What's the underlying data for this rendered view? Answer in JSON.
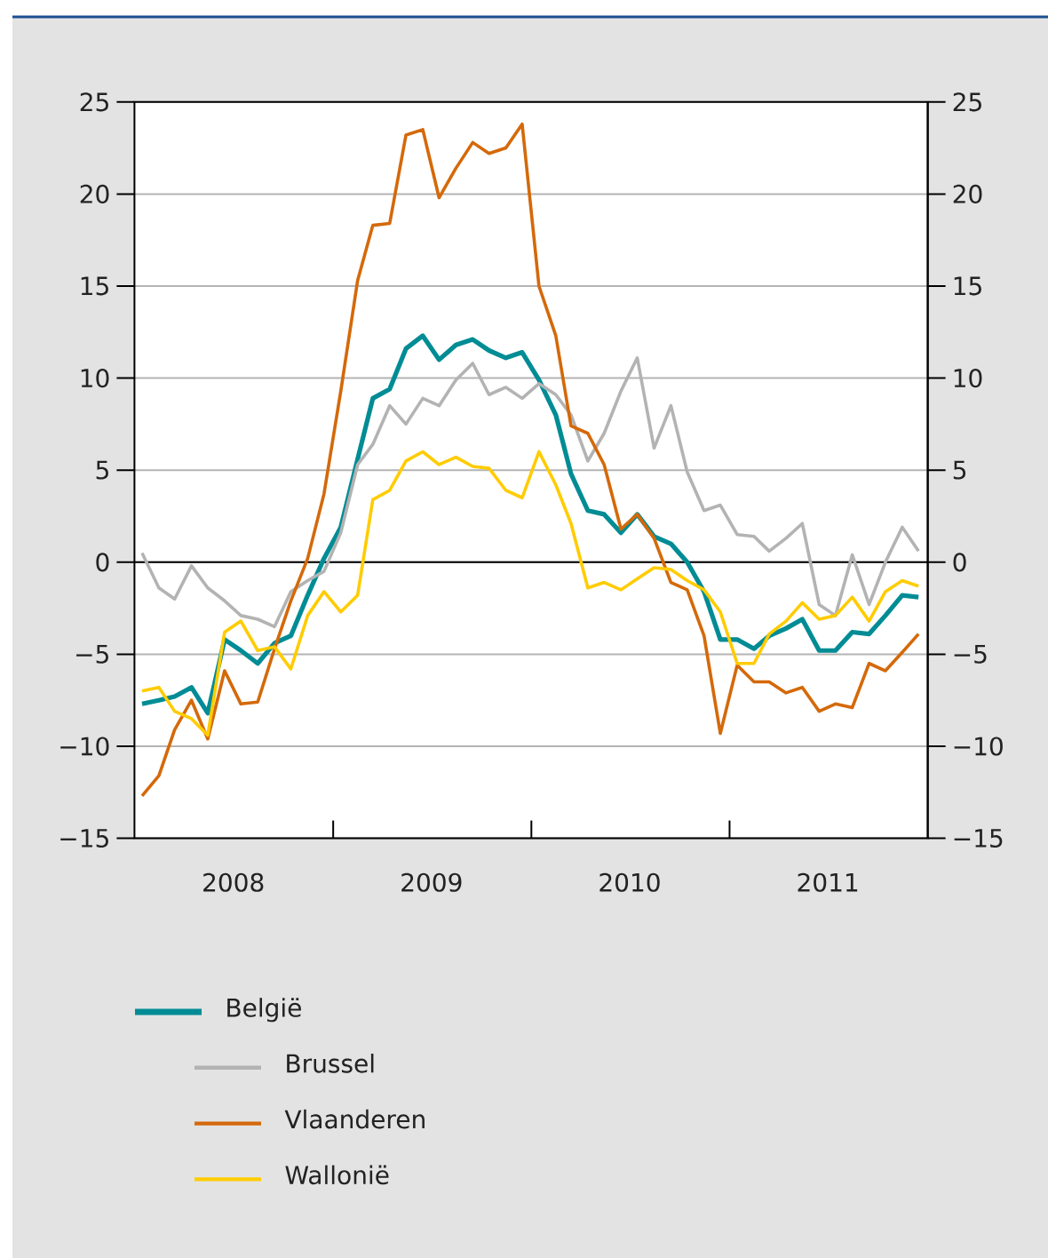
{
  "chart_data": {
    "type": "line",
    "x": [
      "2008-01-15",
      "2008-02-15",
      "2008-03-15",
      "2008-04-15",
      "2008-05-15",
      "2008-06-15",
      "2008-07-15",
      "2008-08-15",
      "2008-09-15",
      "2008-10-15",
      "2008-11-15",
      "2008-12-15",
      "2009-01-15",
      "2009-02-15",
      "2009-03-15",
      "2009-04-15",
      "2009-05-15",
      "2009-06-15",
      "2009-07-15",
      "2009-08-15",
      "2009-09-15",
      "2009-10-15",
      "2009-11-15",
      "2009-12-15",
      "2010-01-15",
      "2010-02-15",
      "2010-03-15",
      "2010-04-15",
      "2010-05-15",
      "2010-06-15",
      "2010-07-15",
      "2010-08-15",
      "2010-09-15",
      "2010-10-15",
      "2010-11-15",
      "2010-12-15",
      "2011-01-15",
      "2011-02-15",
      "2011-03-15",
      "2011-04-15",
      "2011-05-15",
      "2011-06-15",
      "2011-07-15",
      "2011-08-15",
      "2011-09-15",
      "2011-10-15",
      "2011-11-15",
      "2011-12-15"
    ],
    "xlim": [
      "2008-01-01",
      "2012-01-01"
    ],
    "xticks": [
      {
        "value": "2008-07-01",
        "label": "2008"
      },
      {
        "value": "2009-01-01",
        "label": null
      },
      {
        "value": "2009-07-01",
        "label": "2009"
      },
      {
        "value": "2010-01-01",
        "label": null
      },
      {
        "value": "2010-07-01",
        "label": "2010"
      },
      {
        "value": "2011-01-01",
        "label": null
      },
      {
        "value": "2011-07-01",
        "label": "2011"
      }
    ],
    "ylim": [
      -15,
      25
    ],
    "yticks": [
      {
        "value": -15,
        "label": "−15"
      },
      {
        "value": -10,
        "label": "−10"
      },
      {
        "value": -5,
        "label": "−5"
      },
      0,
      5,
      10,
      15,
      20,
      25
    ],
    "y2lim": [
      -15,
      25
    ],
    "y2ticks": [
      {
        "value": -15,
        "label": "−15"
      },
      {
        "value": -10,
        "label": "−10"
      },
      {
        "value": -5,
        "label": "−5"
      },
      0,
      5,
      10,
      15,
      20,
      25
    ],
    "grid": "y",
    "legend": "bottom",
    "ref_lines": [
      {
        "axis": "y",
        "value": 0,
        "color": "#000000"
      }
    ],
    "series": [
      {
        "name": "België",
        "color": "#008c95",
        "values": [
          -7.7,
          -7.5,
          -7.3,
          -6.8,
          -8.2,
          -4.2,
          -4.8,
          -5.5,
          -4.4,
          -4.0,
          -1.8,
          0.2,
          1.9,
          5.6,
          8.9,
          9.4,
          11.6,
          12.3,
          11.0,
          11.8,
          12.1,
          11.5,
          11.1,
          11.4,
          9.9,
          8.0,
          4.8,
          2.8,
          2.6,
          1.6,
          2.6,
          1.4,
          1.0,
          0.0,
          -1.6,
          -4.2,
          -4.2,
          -4.7,
          -4.0,
          -3.6,
          -3.1,
          -4.8,
          -4.8,
          -3.8,
          -3.9,
          -2.9,
          -1.8,
          -1.9
        ]
      },
      {
        "name": "Brussel",
        "color": "#b3b3b3",
        "values": [
          0.5,
          -1.4,
          -2.0,
          -0.2,
          -1.4,
          -2.1,
          -2.9,
          -3.1,
          -3.5,
          -1.6,
          -1.0,
          -0.5,
          1.6,
          5.3,
          6.4,
          8.5,
          7.5,
          8.9,
          8.5,
          9.9,
          10.8,
          9.1,
          9.5,
          8.9,
          9.7,
          9.1,
          8.0,
          5.5,
          7.0,
          9.3,
          11.1,
          6.2,
          8.5,
          4.9,
          2.8,
          3.1,
          1.5,
          1.4,
          0.6,
          1.3,
          2.1,
          -2.3,
          -2.9,
          0.4,
          -2.3,
          0.0,
          1.9,
          0.6
        ]
      },
      {
        "name": "Vlaanderen",
        "color": "#d4690a",
        "values": [
          -12.7,
          -11.6,
          -9.1,
          -7.5,
          -9.6,
          -5.9,
          -7.7,
          -7.6,
          -4.7,
          -2.1,
          0.2,
          3.7,
          9.3,
          15.3,
          18.3,
          18.4,
          23.2,
          23.5,
          19.8,
          21.4,
          22.8,
          22.2,
          22.5,
          23.8,
          15.0,
          12.3,
          7.4,
          7.0,
          5.3,
          1.8,
          2.6,
          1.3,
          -1.1,
          -1.5,
          -4.0,
          -9.3,
          -5.6,
          -6.5,
          -6.5,
          -7.1,
          -6.8,
          -8.1,
          -7.7,
          -7.9,
          -5.5,
          -5.9,
          -4.9,
          -3.9
        ]
      },
      {
        "name": "Wallonië",
        "color": "#ffcc00",
        "values": [
          -7.0,
          -6.8,
          -8.1,
          -8.5,
          -9.4,
          -3.8,
          -3.2,
          -4.8,
          -4.6,
          -5.8,
          -2.9,
          -1.6,
          -2.7,
          -1.8,
          3.4,
          3.9,
          5.5,
          6.0,
          5.3,
          5.7,
          5.2,
          5.1,
          3.9,
          3.5,
          6.0,
          4.2,
          2.1,
          -1.4,
          -1.1,
          -1.5,
          -0.9,
          -0.3,
          -0.4,
          -1.0,
          -1.5,
          -2.7,
          -5.5,
          -5.5,
          -3.9,
          -3.2,
          -2.2,
          -3.1,
          -2.9,
          -1.9,
          -3.2,
          -1.6,
          -1.0,
          -1.3
        ]
      }
    ]
  }
}
